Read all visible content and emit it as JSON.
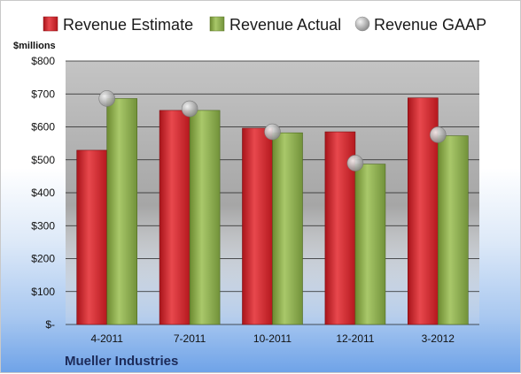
{
  "chart_data": {
    "type": "bar",
    "title": "",
    "unit_label": "$millions",
    "footer_label": "Mueller Industries",
    "categories": [
      "4-2011",
      "7-2011",
      "10-2011",
      "12-2011",
      "3-2012"
    ],
    "ylim": [
      0,
      800
    ],
    "yticks": [
      0,
      100,
      200,
      300,
      400,
      500,
      600,
      700,
      800
    ],
    "ytick_labels": [
      "$-",
      "$100",
      "$200",
      "$300",
      "$400",
      "$500",
      "$600",
      "$700",
      "$800"
    ],
    "grid": true,
    "legend_position": "top",
    "series": [
      {
        "name": "Revenue Estimate",
        "kind": "bar",
        "color": "#d9262c",
        "values": [
          529,
          650,
          596,
          585,
          688
        ]
      },
      {
        "name": "Revenue Actual",
        "kind": "bar",
        "color": "#8fb04a",
        "values": [
          686,
          650,
          582,
          487,
          573
        ]
      },
      {
        "name": "Revenue GAAP",
        "kind": "marker",
        "color": "#b8b8b8",
        "values": [
          686,
          655,
          585,
          490,
          576
        ]
      }
    ]
  }
}
